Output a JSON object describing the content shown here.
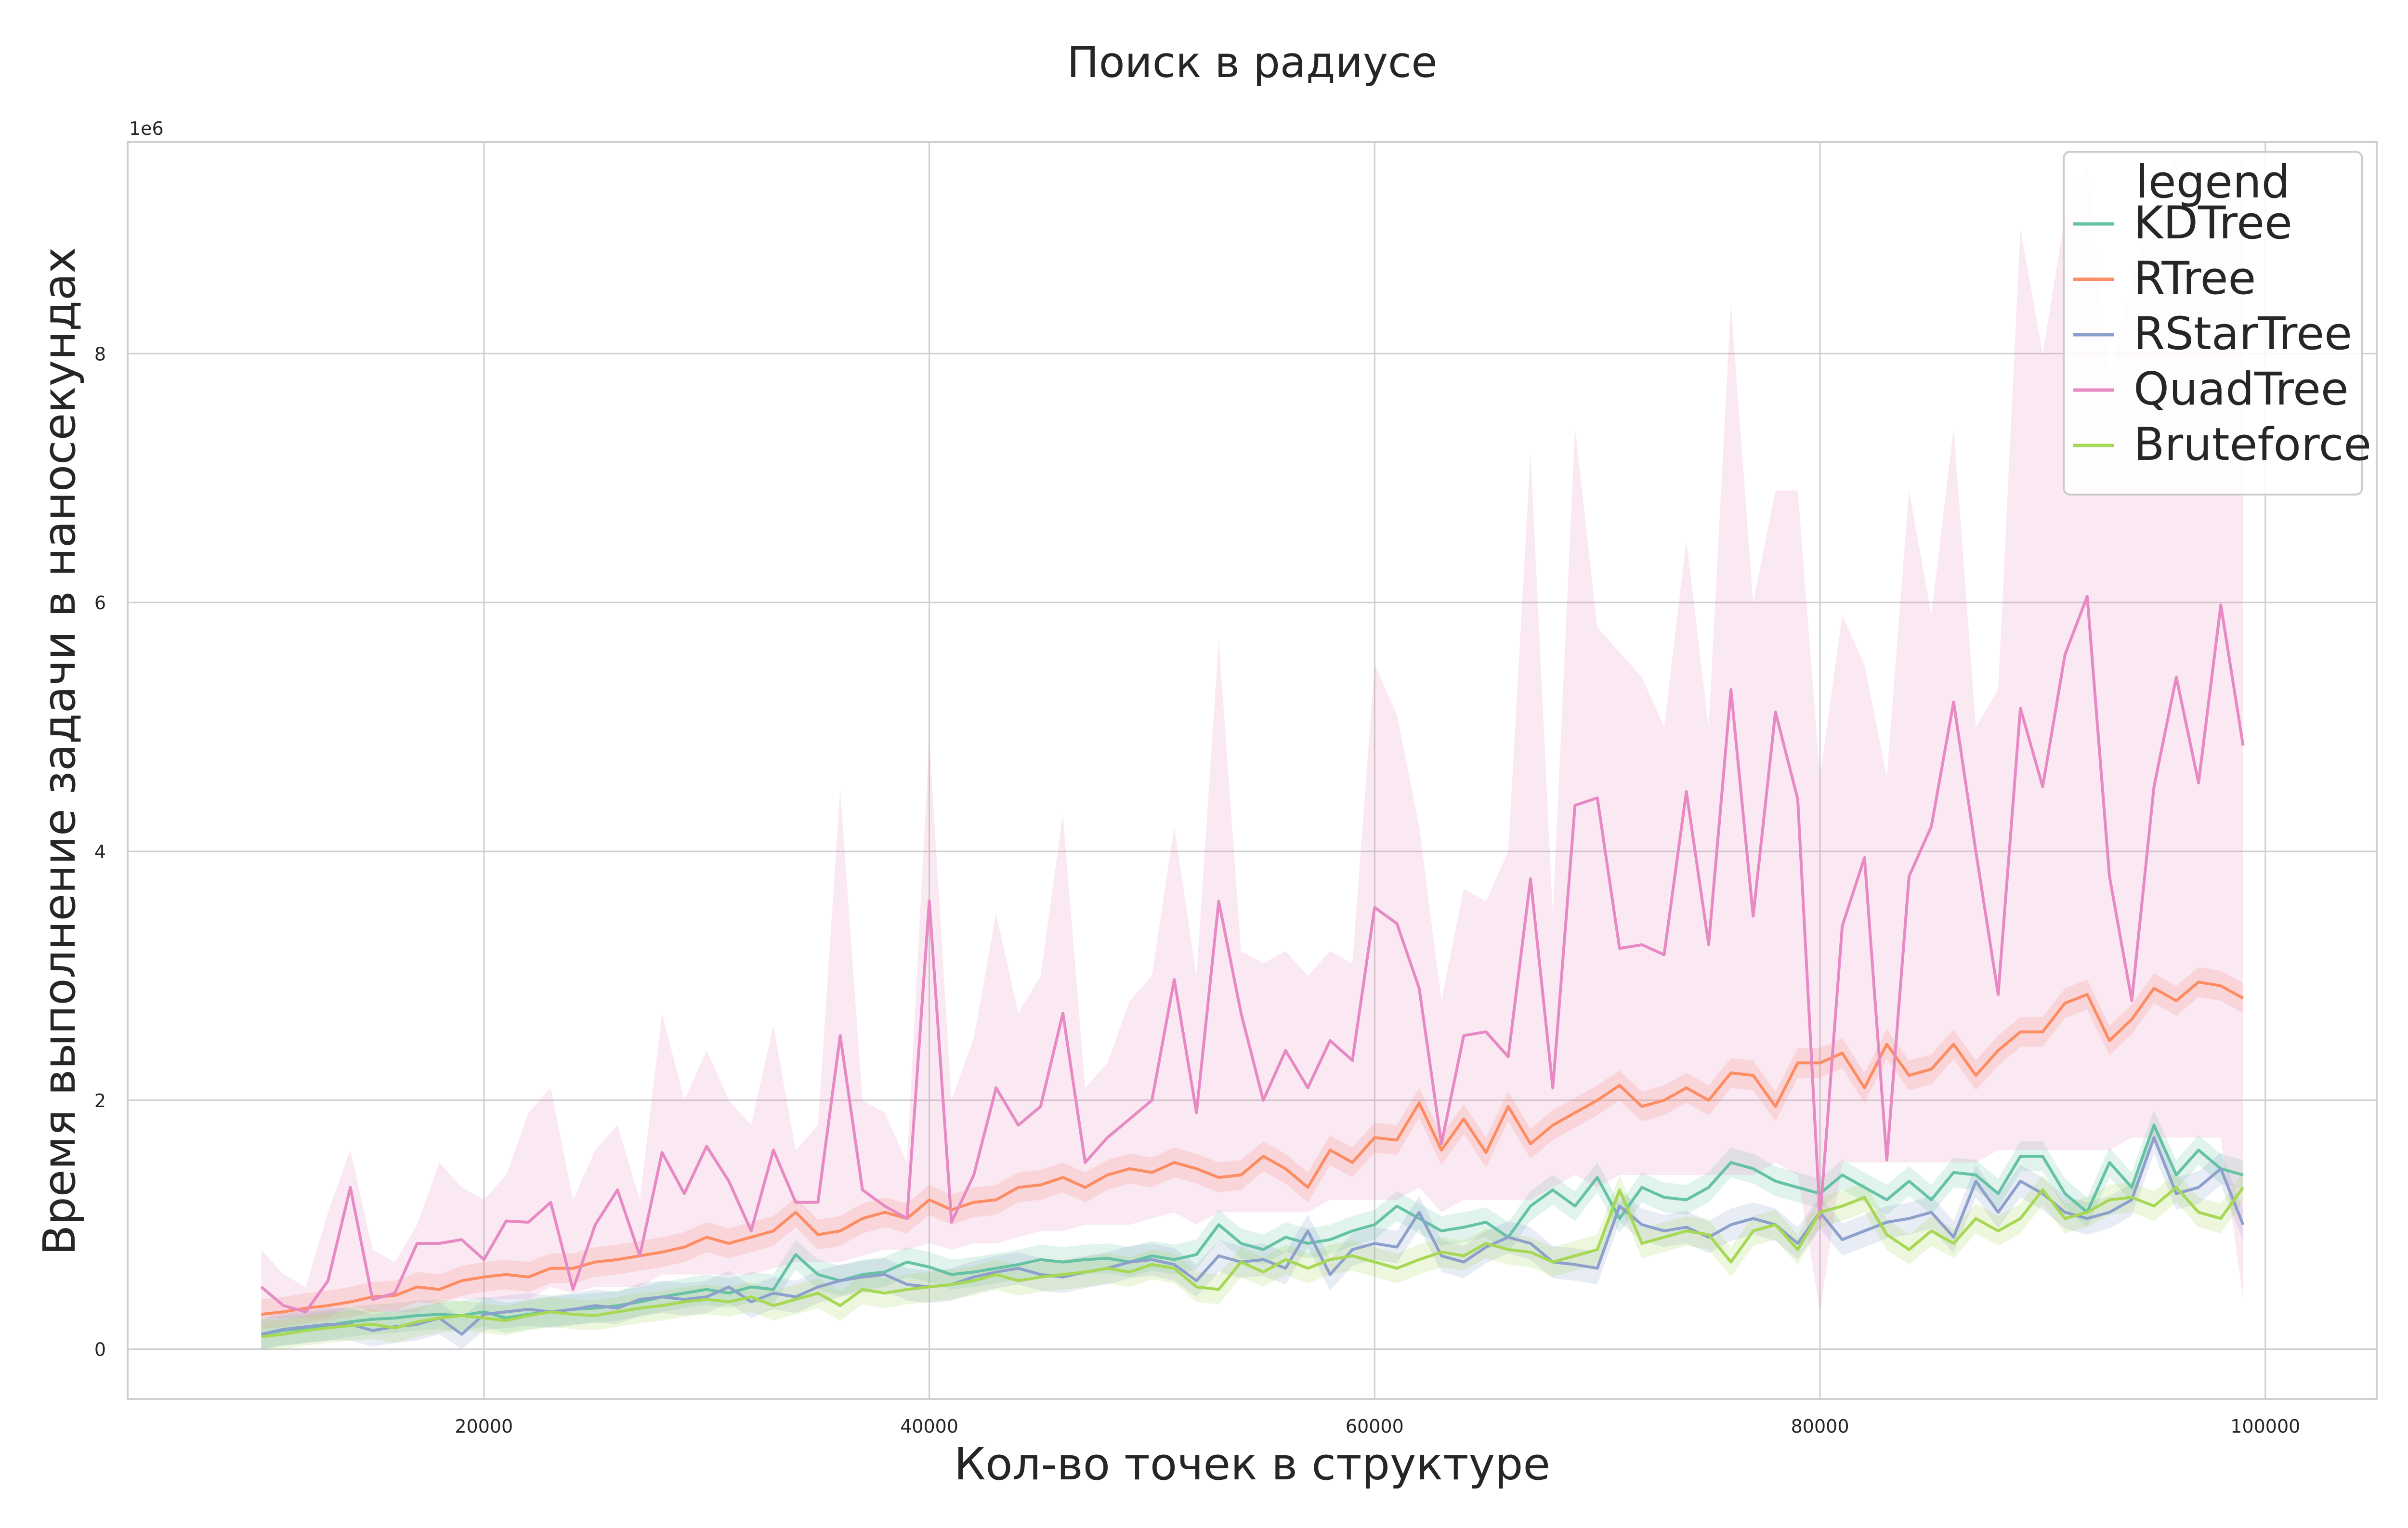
{
  "chart_data": {
    "type": "line",
    "title": "Поиск в радиусе",
    "xlabel": "Кол-во точек в структуре",
    "ylabel": "Время выполнение задачи в наносекундах",
    "y_multiplier_label": "1e6",
    "xlim": [
      4000,
      105000
    ],
    "ylim": [
      -0.4,
      9.7
    ],
    "x_ticks": [
      20000,
      40000,
      60000,
      80000,
      100000
    ],
    "y_ticks": [
      0,
      2,
      4,
      6,
      8
    ],
    "grid": true,
    "legend": {
      "title": "legend",
      "position": "top-right",
      "entries": [
        "KDTree",
        "RTree",
        "RStarTree",
        "QuadTree",
        "Bruteforce"
      ]
    },
    "x": [
      10000,
      11000,
      12000,
      13000,
      14000,
      15000,
      16000,
      17000,
      18000,
      19000,
      20000,
      21000,
      22000,
      23000,
      24000,
      25000,
      26000,
      27000,
      28000,
      29000,
      30000,
      31000,
      32000,
      33000,
      34000,
      35000,
      36000,
      37000,
      38000,
      39000,
      40000,
      41000,
      42000,
      43000,
      44000,
      45000,
      46000,
      47000,
      48000,
      49000,
      50000,
      51000,
      52000,
      53000,
      54000,
      55000,
      56000,
      57000,
      58000,
      59000,
      60000,
      61000,
      62000,
      63000,
      64000,
      65000,
      66000,
      67000,
      68000,
      69000,
      70000,
      71000,
      72000,
      73000,
      74000,
      75000,
      76000,
      77000,
      78000,
      79000,
      80000,
      81000,
      82000,
      83000,
      84000,
      85000,
      86000,
      87000,
      88000,
      89000,
      90000,
      91000,
      92000,
      93000,
      94000,
      95000,
      96000,
      97000,
      98000,
      99000
    ],
    "series": [
      {
        "name": "KDTree",
        "color": "#66c2a5",
        "band": 0.12,
        "values": [
          0.12,
          0.15,
          0.17,
          0.19,
          0.22,
          0.24,
          0.25,
          0.27,
          0.28,
          0.27,
          0.3,
          0.25,
          0.28,
          0.3,
          0.32,
          0.33,
          0.35,
          0.38,
          0.42,
          0.45,
          0.48,
          0.45,
          0.5,
          0.48,
          0.76,
          0.6,
          0.55,
          0.6,
          0.62,
          0.7,
          0.66,
          0.6,
          0.62,
          0.65,
          0.68,
          0.72,
          0.7,
          0.72,
          0.73,
          0.7,
          0.75,
          0.72,
          0.76,
          1.0,
          0.85,
          0.8,
          0.9,
          0.85,
          0.88,
          0.95,
          1.0,
          1.15,
          1.05,
          0.95,
          0.98,
          1.02,
          0.9,
          1.15,
          1.28,
          1.15,
          1.38,
          1.05,
          1.3,
          1.22,
          1.2,
          1.3,
          1.5,
          1.45,
          1.35,
          1.3,
          1.25,
          1.4,
          1.3,
          1.2,
          1.35,
          1.2,
          1.42,
          1.4,
          1.25,
          1.55,
          1.55,
          1.25,
          1.1,
          1.5,
          1.3,
          1.8,
          1.4,
          1.6,
          1.45,
          1.4
        ]
      },
      {
        "name": "RTree",
        "color": "#fc8d62",
        "band": 0.12,
        "values": [
          0.28,
          0.3,
          0.33,
          0.35,
          0.38,
          0.42,
          0.43,
          0.5,
          0.48,
          0.55,
          0.58,
          0.6,
          0.58,
          0.65,
          0.65,
          0.7,
          0.72,
          0.75,
          0.78,
          0.82,
          0.9,
          0.85,
          0.9,
          0.95,
          1.1,
          0.92,
          0.95,
          1.05,
          1.1,
          1.05,
          1.2,
          1.12,
          1.18,
          1.2,
          1.3,
          1.32,
          1.38,
          1.3,
          1.4,
          1.45,
          1.42,
          1.5,
          1.45,
          1.38,
          1.4,
          1.55,
          1.45,
          1.3,
          1.6,
          1.5,
          1.7,
          1.68,
          1.98,
          1.6,
          1.85,
          1.58,
          1.95,
          1.65,
          1.8,
          1.9,
          2.0,
          2.12,
          1.95,
          2.0,
          2.1,
          2.0,
          2.22,
          2.2,
          1.95,
          2.3,
          2.3,
          2.38,
          2.1,
          2.45,
          2.2,
          2.25,
          2.45,
          2.2,
          2.4,
          2.55,
          2.55,
          2.78,
          2.85,
          2.48,
          2.65,
          2.9,
          2.8,
          2.95,
          2.92,
          2.82
        ]
      },
      {
        "name": "RStarTree",
        "color": "#8da0cb",
        "band": 0.13,
        "values": [
          0.12,
          0.16,
          0.18,
          0.2,
          0.2,
          0.15,
          0.18,
          0.2,
          0.25,
          0.12,
          0.28,
          0.3,
          0.32,
          0.3,
          0.32,
          0.35,
          0.33,
          0.4,
          0.42,
          0.4,
          0.42,
          0.5,
          0.38,
          0.45,
          0.42,
          0.5,
          0.55,
          0.58,
          0.6,
          0.52,
          0.5,
          0.52,
          0.58,
          0.62,
          0.65,
          0.6,
          0.58,
          0.62,
          0.65,
          0.7,
          0.72,
          0.68,
          0.55,
          0.75,
          0.7,
          0.72,
          0.65,
          0.95,
          0.6,
          0.8,
          0.85,
          0.82,
          1.1,
          0.75,
          0.7,
          0.82,
          0.9,
          0.85,
          0.7,
          0.68,
          0.65,
          1.15,
          1.0,
          0.95,
          0.98,
          0.9,
          1.0,
          1.05,
          1.0,
          0.85,
          1.1,
          0.88,
          0.95,
          1.02,
          1.05,
          1.1,
          0.9,
          1.35,
          1.1,
          1.35,
          1.25,
          1.1,
          1.05,
          1.1,
          1.2,
          1.7,
          1.25,
          1.3,
          1.45,
          1.0
        ]
      },
      {
        "name": "QuadTree",
        "color": "#e78ac3",
        "band_lo": [
          0.25,
          0.25,
          0.25,
          0.25,
          0.35,
          0.3,
          0.3,
          0.3,
          0.4,
          0.4,
          0.4,
          0.4,
          0.4,
          0.5,
          0.45,
          0.5,
          0.5,
          0.5,
          0.6,
          0.6,
          0.6,
          0.6,
          0.6,
          0.65,
          0.7,
          0.7,
          0.7,
          0.75,
          0.8,
          0.8,
          0.85,
          0.8,
          0.85,
          0.85,
          0.9,
          0.95,
          0.95,
          1.0,
          1.0,
          1.0,
          1.05,
          1.1,
          1.0,
          1.1,
          1.1,
          1.1,
          1.1,
          1.1,
          1.2,
          1.2,
          1.2,
          1.2,
          1.3,
          1.1,
          1.2,
          1.2,
          1.2,
          1.2,
          1.3,
          1.4,
          1.3,
          1.4,
          1.4,
          1.4,
          1.4,
          1.4,
          1.4,
          1.4,
          1.5,
          1.4,
          0.3,
          1.5,
          1.5,
          1.5,
          1.5,
          1.5,
          1.5,
          1.5,
          1.6,
          1.6,
          1.6,
          1.6,
          1.6,
          1.6,
          1.7,
          1.7,
          1.7,
          1.7,
          1.7,
          0.4
        ],
        "band_hi": [
          0.8,
          0.6,
          0.5,
          1.1,
          1.6,
          0.8,
          0.7,
          1.0,
          1.5,
          1.3,
          1.2,
          1.4,
          1.9,
          2.1,
          1.2,
          1.6,
          1.8,
          1.2,
          2.7,
          2.0,
          2.4,
          2.0,
          1.8,
          2.6,
          1.6,
          1.8,
          4.5,
          2.0,
          1.9,
          1.5,
          4.9,
          2.0,
          2.5,
          3.5,
          2.7,
          3.0,
          4.3,
          2.1,
          2.3,
          2.8,
          3.0,
          4.2,
          3.0,
          5.7,
          3.2,
          3.1,
          3.2,
          3.0,
          3.2,
          3.1,
          5.5,
          5.1,
          4.2,
          2.8,
          3.7,
          3.6,
          4.0,
          7.2,
          3.5,
          7.4,
          5.8,
          5.6,
          5.4,
          5.0,
          6.5,
          5.0,
          8.4,
          6.0,
          6.9,
          6.9,
          4.6,
          5.9,
          5.5,
          4.6,
          6.9,
          5.9,
          7.4,
          5.0,
          5.3,
          9.0,
          8.0,
          9.1,
          9.5,
          7.8,
          8.6,
          9.2,
          9.6,
          9.4,
          9.4,
          9.6
        ],
        "values": [
          0.5,
          0.35,
          0.3,
          0.55,
          1.3,
          0.4,
          0.45,
          0.85,
          0.85,
          0.88,
          0.72,
          1.03,
          1.02,
          1.18,
          0.48,
          1.0,
          1.28,
          0.75,
          1.58,
          1.25,
          1.63,
          1.35,
          0.95,
          1.6,
          1.18,
          1.18,
          2.52,
          1.28,
          1.15,
          1.05,
          3.6,
          1.02,
          1.4,
          2.1,
          1.8,
          1.95,
          2.7,
          1.5,
          1.7,
          1.85,
          2.0,
          2.97,
          1.9,
          3.6,
          2.7,
          2.0,
          2.4,
          2.1,
          2.48,
          2.32,
          3.55,
          3.42,
          2.9,
          1.65,
          2.52,
          2.55,
          2.35,
          3.78,
          2.1,
          4.37,
          4.43,
          3.22,
          3.25,
          3.17,
          4.48,
          3.25,
          5.3,
          3.48,
          5.12,
          4.42,
          1.05,
          3.4,
          3.95,
          1.52,
          3.8,
          4.2,
          5.2,
          4.0,
          2.85,
          5.15,
          4.52,
          5.58,
          6.05,
          3.8,
          2.8,
          4.52,
          5.4,
          4.55,
          5.98,
          4.85
        ]
      },
      {
        "name": "Bruteforce",
        "color": "#a6d854",
        "band": 0.12,
        "values": [
          0.1,
          0.12,
          0.15,
          0.17,
          0.19,
          0.2,
          0.17,
          0.22,
          0.25,
          0.27,
          0.25,
          0.23,
          0.27,
          0.3,
          0.28,
          0.27,
          0.3,
          0.33,
          0.35,
          0.38,
          0.4,
          0.38,
          0.42,
          0.35,
          0.4,
          0.45,
          0.35,
          0.48,
          0.45,
          0.48,
          0.5,
          0.52,
          0.55,
          0.6,
          0.55,
          0.58,
          0.6,
          0.62,
          0.65,
          0.62,
          0.68,
          0.65,
          0.5,
          0.48,
          0.7,
          0.62,
          0.72,
          0.65,
          0.72,
          0.75,
          0.7,
          0.65,
          0.72,
          0.78,
          0.75,
          0.85,
          0.8,
          0.78,
          0.7,
          0.75,
          0.8,
          1.28,
          0.85,
          0.9,
          0.95,
          0.92,
          0.7,
          0.95,
          1.0,
          0.8,
          1.1,
          1.15,
          1.22,
          0.92,
          0.8,
          0.95,
          0.85,
          1.05,
          0.95,
          1.05,
          1.28,
          1.05,
          1.1,
          1.2,
          1.22,
          1.15,
          1.3,
          1.1,
          1.05,
          1.3
        ]
      }
    ]
  }
}
